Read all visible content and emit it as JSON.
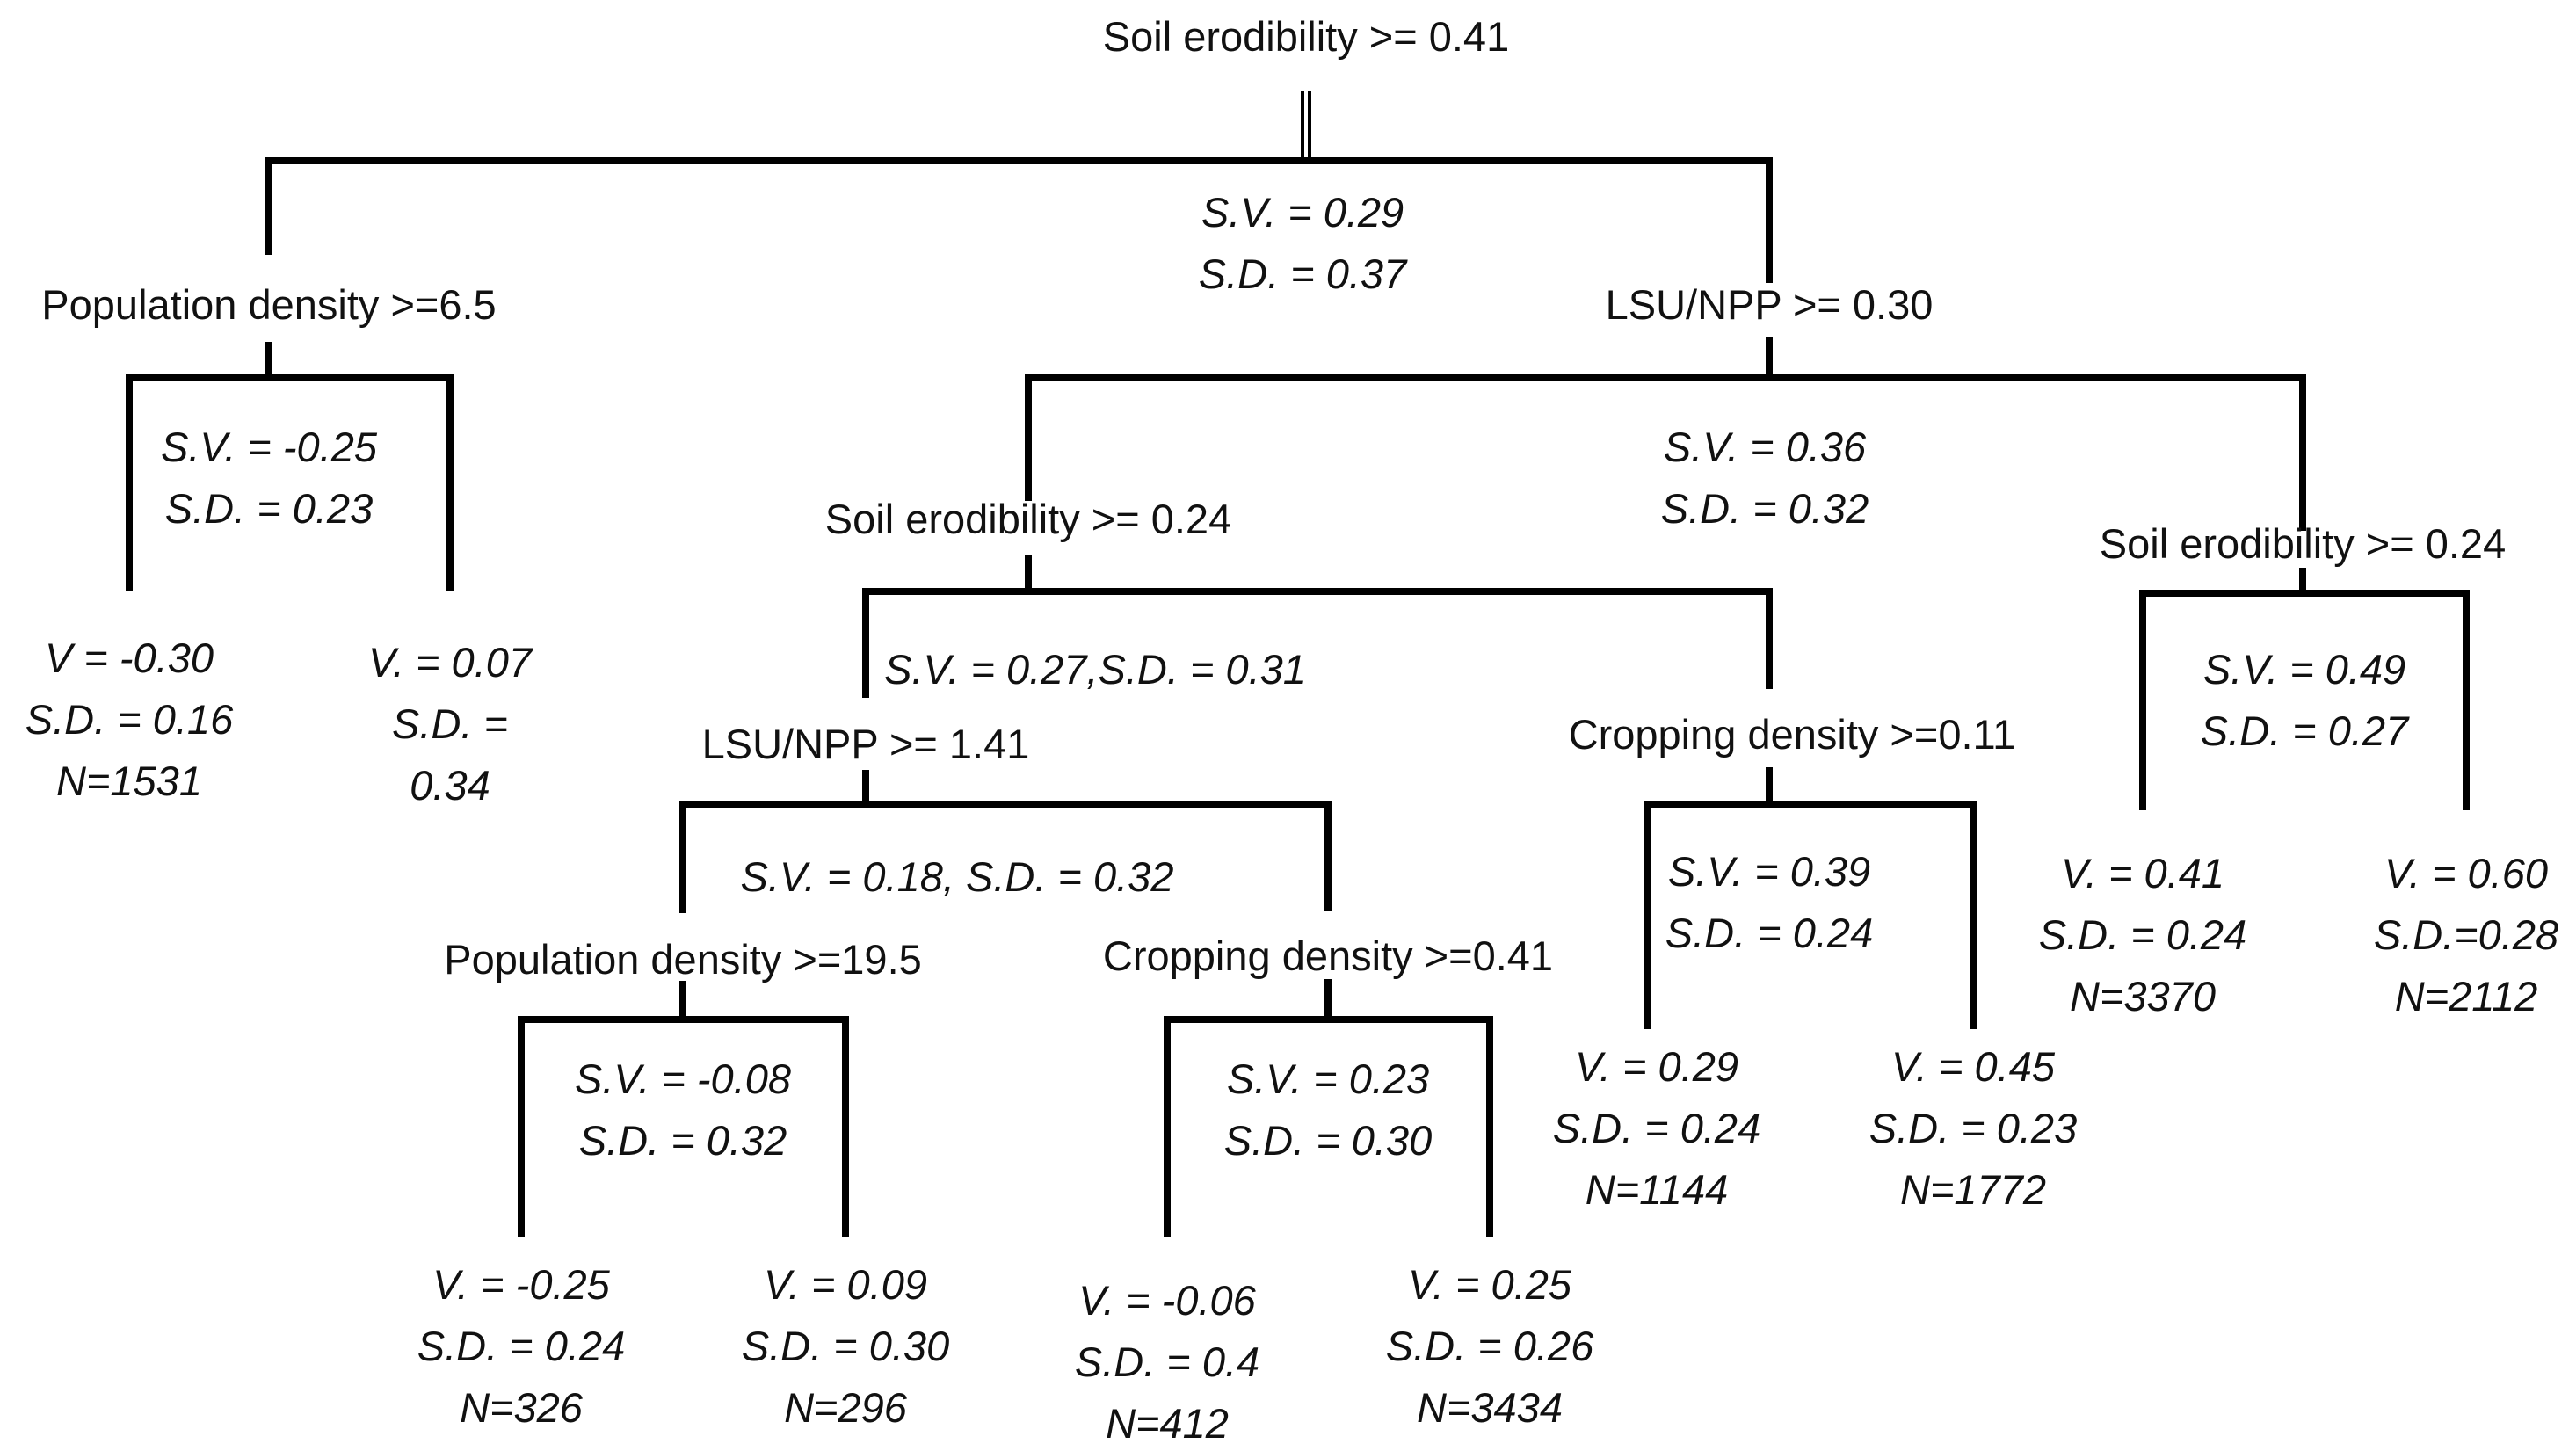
{
  "root": {
    "split": "Soil erodibility >= 0.41",
    "sv": "S.V. = 0.29",
    "sd": "S.D. = 0.37"
  },
  "pop65": {
    "split": "Population density >=6.5",
    "sv": "S.V. = -0.25",
    "sd": "S.D. = 0.23"
  },
  "lsu030": {
    "split": "LSU/NPP >= 0.30",
    "sv": "S.V. = 0.36",
    "sd": "S.D. = 0.32"
  },
  "soil024a": {
    "split": "Soil erodibility >= 0.24",
    "svsd": "S.V. = 0.27,S.D. = 0.31"
  },
  "soil024b": {
    "split": "Soil erodibility >= 0.24",
    "sv": "S.V. = 0.49",
    "sd": "S.D. = 0.27"
  },
  "lsu141": {
    "split": "LSU/NPP >= 1.41",
    "svsd": "S.V. = 0.18, S.D. = 0.32"
  },
  "crop011": {
    "split": "Cropping density >=0.11",
    "sv": "S.V. = 0.39",
    "sd": "S.D. = 0.24"
  },
  "pop195": {
    "split": "Population density >=19.5",
    "sv": "S.V. = -0.08",
    "sd": "S.D. = 0.32"
  },
  "crop041": {
    "split": "Cropping density >=0.41",
    "sv": "S.V. = 0.23",
    "sd": "S.D. = 0.30"
  },
  "leaves": {
    "l1": [
      "V = -0.30",
      "S.D. = 0.16",
      "N=1531"
    ],
    "l2": [
      "V. = 0.07",
      "S.D. =",
      "0.34"
    ],
    "l3": [
      "V. = -0.25",
      "S.D. = 0.24",
      "N=326"
    ],
    "l4": [
      "V. = 0.09",
      "S.D. = 0.30",
      "N=296"
    ],
    "l5": [
      "V. = -0.06",
      "S.D. = 0.4",
      "N=412"
    ],
    "l6": [
      "V. = 0.25",
      "S.D. = 0.26",
      "N=3434"
    ],
    "l7": [
      "V. = 0.29",
      "S.D. = 0.24",
      "N=1144"
    ],
    "l8": [
      "V. = 0.45",
      "S.D. = 0.23",
      "N=1772"
    ],
    "l9": [
      "V. = 0.41",
      "S.D. = 0.24",
      "N=3370"
    ],
    "l10": [
      "V. = 0.60",
      "S.D.=0.28",
      "N=2112"
    ]
  }
}
